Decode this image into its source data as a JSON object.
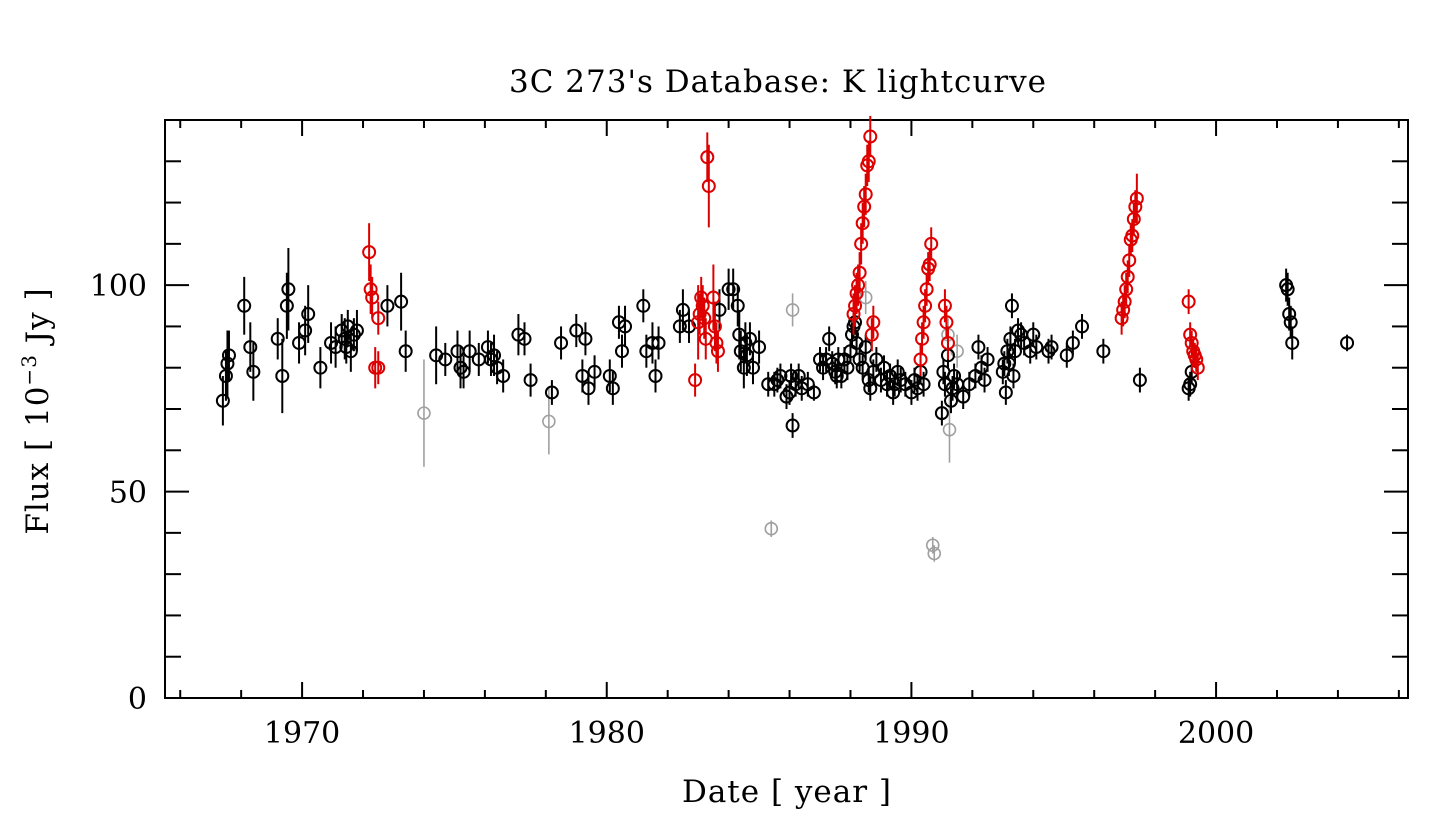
{
  "chart_data": {
    "type": "scatter",
    "title": "3C 273's Database: K lightcurve",
    "xlabel": "Date [ year ]",
    "ylabel_parts": {
      "pre": "Flux [ 10",
      "sup": "−3",
      "post": " Jy ]"
    },
    "xlim": [
      1965.5,
      2006.3
    ],
    "ylim": [
      0,
      140
    ],
    "x_ticks": [
      1970,
      1980,
      1990,
      2000
    ],
    "x_tick_labels": [
      "1970",
      "1980",
      "1990",
      "2000"
    ],
    "y_ticks": [
      0,
      50,
      100
    ],
    "y_tick_labels": [
      "0",
      "50",
      "100"
    ],
    "x_minor_step": 2,
    "y_minor_step": 10,
    "colors": {
      "black": "#000000",
      "red": "#dd0000",
      "gray": "#a0a0a0"
    },
    "series": [
      {
        "name": "black",
        "points": [
          [
            1967.4,
            72,
            6
          ],
          [
            1967.5,
            78,
            6
          ],
          [
            1967.55,
            81,
            8
          ],
          [
            1967.6,
            83,
            6
          ],
          [
            1968.1,
            95,
            7
          ],
          [
            1968.3,
            85,
            6
          ],
          [
            1968.4,
            79,
            7
          ],
          [
            1969.2,
            87,
            5
          ],
          [
            1969.35,
            78,
            9
          ],
          [
            1969.5,
            95,
            8
          ],
          [
            1969.55,
            99,
            10
          ],
          [
            1969.9,
            86,
            5
          ],
          [
            1970.1,
            89,
            6
          ],
          [
            1970.2,
            93,
            7
          ],
          [
            1970.6,
            80,
            5
          ],
          [
            1970.95,
            86,
            5
          ],
          [
            1971.1,
            85,
            5
          ],
          [
            1971.3,
            89,
            4
          ],
          [
            1971.4,
            87,
            5
          ],
          [
            1971.45,
            85,
            4
          ],
          [
            1971.5,
            90,
            4
          ],
          [
            1971.6,
            84,
            5
          ],
          [
            1971.7,
            88,
            4
          ],
          [
            1971.8,
            89,
            5
          ],
          [
            1972.8,
            95,
            5
          ],
          [
            1973.25,
            96,
            7
          ],
          [
            1973.4,
            84,
            5
          ],
          [
            1974.4,
            83,
            7
          ],
          [
            1974.7,
            82,
            4
          ],
          [
            1975.1,
            84,
            5
          ],
          [
            1975.2,
            80,
            5
          ],
          [
            1975.3,
            79,
            4
          ],
          [
            1975.5,
            84,
            5
          ],
          [
            1975.8,
            82,
            4
          ],
          [
            1976.1,
            85,
            4
          ],
          [
            1976.2,
            82,
            4
          ],
          [
            1976.3,
            83,
            5
          ],
          [
            1976.4,
            80,
            4
          ],
          [
            1976.6,
            78,
            4
          ],
          [
            1977.1,
            88,
            5
          ],
          [
            1977.3,
            87,
            4
          ],
          [
            1977.5,
            77,
            4
          ],
          [
            1978.2,
            74,
            3
          ],
          [
            1978.5,
            86,
            4
          ],
          [
            1979.0,
            89,
            4
          ],
          [
            1979.2,
            78,
            4
          ],
          [
            1979.3,
            87,
            4
          ],
          [
            1979.4,
            75,
            4
          ],
          [
            1979.6,
            79,
            4
          ],
          [
            1980.1,
            78,
            4
          ],
          [
            1980.2,
            75,
            4
          ],
          [
            1980.4,
            91,
            4
          ],
          [
            1980.5,
            84,
            4
          ],
          [
            1980.6,
            90,
            5
          ],
          [
            1981.2,
            95,
            4
          ],
          [
            1981.3,
            84,
            4
          ],
          [
            1981.5,
            86,
            5
          ],
          [
            1981.6,
            78,
            4
          ],
          [
            1981.7,
            86,
            4
          ],
          [
            1982.4,
            90,
            4
          ],
          [
            1982.5,
            94,
            5
          ],
          [
            1982.7,
            90,
            4
          ],
          [
            1983.7,
            94,
            5
          ],
          [
            1984.0,
            99,
            5
          ],
          [
            1984.15,
            99,
            5
          ],
          [
            1984.3,
            95,
            5
          ],
          [
            1984.35,
            88,
            6
          ],
          [
            1984.4,
            84,
            5
          ],
          [
            1984.5,
            80,
            5
          ],
          [
            1984.55,
            86,
            5
          ],
          [
            1984.6,
            83,
            5
          ],
          [
            1984.7,
            87,
            4
          ],
          [
            1984.8,
            80,
            4
          ],
          [
            1985.0,
            85,
            4
          ],
          [
            1985.3,
            76,
            3
          ],
          [
            1985.5,
            76,
            3
          ],
          [
            1985.6,
            77,
            3
          ],
          [
            1985.7,
            78,
            3
          ],
          [
            1985.9,
            73,
            3
          ],
          [
            1986.0,
            74,
            3
          ],
          [
            1986.05,
            78,
            3
          ],
          [
            1986.1,
            66,
            3
          ],
          [
            1986.2,
            76,
            3
          ],
          [
            1986.3,
            78,
            3
          ],
          [
            1986.4,
            75,
            3
          ],
          [
            1986.6,
            76,
            3
          ],
          [
            1986.8,
            74,
            2
          ],
          [
            1987.0,
            82,
            3
          ],
          [
            1987.1,
            80,
            3
          ],
          [
            1987.2,
            82,
            3
          ],
          [
            1987.3,
            87,
            3
          ],
          [
            1987.4,
            81,
            3
          ],
          [
            1987.5,
            79,
            3
          ],
          [
            1987.55,
            78,
            3
          ],
          [
            1987.6,
            82,
            3
          ],
          [
            1987.7,
            78,
            3
          ],
          [
            1987.8,
            82,
            3
          ],
          [
            1987.9,
            80,
            3
          ],
          [
            1988.0,
            84,
            3
          ],
          [
            1988.05,
            88,
            3
          ],
          [
            1988.1,
            90,
            3
          ],
          [
            1988.15,
            91,
            3
          ],
          [
            1988.2,
            86,
            3
          ],
          [
            1988.3,
            82,
            3
          ],
          [
            1988.4,
            80,
            3
          ],
          [
            1988.5,
            85,
            3
          ],
          [
            1988.6,
            77,
            3
          ],
          [
            1988.65,
            75,
            3
          ],
          [
            1988.75,
            79,
            3
          ],
          [
            1988.85,
            82,
            3
          ],
          [
            1989.0,
            77,
            3
          ],
          [
            1989.1,
            80,
            3
          ],
          [
            1989.2,
            76,
            3
          ],
          [
            1989.3,
            78,
            3
          ],
          [
            1989.4,
            74,
            3
          ],
          [
            1989.45,
            76,
            3
          ],
          [
            1989.55,
            79,
            3
          ],
          [
            1989.65,
            77,
            3
          ],
          [
            1989.8,
            76,
            3
          ],
          [
            1990.0,
            74,
            3
          ],
          [
            1990.1,
            77,
            3
          ],
          [
            1990.2,
            75,
            3
          ],
          [
            1990.3,
            79,
            3
          ],
          [
            1990.4,
            76,
            3
          ],
          [
            1991.0,
            69,
            3
          ],
          [
            1991.05,
            79,
            3
          ],
          [
            1991.1,
            76,
            3
          ],
          [
            1991.2,
            83,
            3
          ],
          [
            1991.3,
            72,
            3
          ],
          [
            1991.35,
            75,
            3
          ],
          [
            1991.4,
            78,
            3
          ],
          [
            1991.5,
            76,
            3
          ],
          [
            1991.7,
            73,
            3
          ],
          [
            1991.9,
            76,
            3
          ],
          [
            1992.1,
            78,
            3
          ],
          [
            1992.2,
            85,
            3
          ],
          [
            1992.3,
            80,
            3
          ],
          [
            1992.4,
            77,
            3
          ],
          [
            1992.5,
            82,
            3
          ],
          [
            1993.0,
            79,
            3
          ],
          [
            1993.05,
            81,
            3
          ],
          [
            1993.1,
            74,
            3
          ],
          [
            1993.15,
            84,
            3
          ],
          [
            1993.2,
            81,
            3
          ],
          [
            1993.25,
            87,
            3
          ],
          [
            1993.3,
            95,
            3
          ],
          [
            1993.35,
            78,
            3
          ],
          [
            1993.4,
            84,
            3
          ],
          [
            1993.5,
            89,
            3
          ],
          [
            1993.6,
            88,
            3
          ],
          [
            1993.7,
            86,
            3
          ],
          [
            1993.9,
            84,
            3
          ],
          [
            1994.0,
            88,
            3
          ],
          [
            1994.1,
            85,
            3
          ],
          [
            1994.5,
            84,
            3
          ],
          [
            1994.6,
            85,
            3
          ],
          [
            1995.1,
            83,
            3
          ],
          [
            1995.3,
            86,
            3
          ],
          [
            1995.6,
            90,
            3
          ],
          [
            1996.3,
            84,
            3
          ],
          [
            1997.5,
            77,
            3
          ],
          [
            1999.1,
            75,
            3
          ],
          [
            1999.15,
            76,
            3
          ],
          [
            1999.2,
            79,
            3
          ],
          [
            2002.3,
            100,
            4
          ],
          [
            2002.35,
            99,
            4
          ],
          [
            2002.4,
            93,
            4
          ],
          [
            2002.45,
            91,
            4
          ],
          [
            2002.5,
            86,
            4
          ],
          [
            2004.3,
            86,
            2
          ]
        ]
      },
      {
        "name": "red",
        "points": [
          [
            1972.2,
            108,
            7
          ],
          [
            1972.25,
            99,
            6
          ],
          [
            1972.3,
            97,
            5
          ],
          [
            1972.5,
            92,
            4
          ],
          [
            1972.4,
            80,
            5
          ],
          [
            1972.5,
            80,
            4
          ],
          [
            1982.9,
            77,
            4
          ],
          [
            1983.0,
            91,
            9
          ],
          [
            1983.05,
            93,
            5
          ],
          [
            1983.1,
            97,
            5
          ],
          [
            1983.15,
            95,
            5
          ],
          [
            1983.2,
            92,
            5
          ],
          [
            1983.25,
            87,
            5
          ],
          [
            1983.3,
            131,
            6
          ],
          [
            1983.35,
            124,
            10
          ],
          [
            1983.5,
            97,
            8
          ],
          [
            1983.55,
            90,
            6
          ],
          [
            1983.6,
            86,
            5
          ],
          [
            1983.65,
            84,
            5
          ],
          [
            1988.1,
            93,
            5
          ],
          [
            1988.15,
            95,
            5
          ],
          [
            1988.2,
            98,
            5
          ],
          [
            1988.25,
            100,
            5
          ],
          [
            1988.3,
            103,
            5
          ],
          [
            1988.35,
            110,
            5
          ],
          [
            1988.4,
            115,
            5
          ],
          [
            1988.45,
            119,
            5
          ],
          [
            1988.5,
            122,
            5
          ],
          [
            1988.55,
            129,
            5
          ],
          [
            1988.6,
            130,
            5
          ],
          [
            1988.65,
            136,
            5
          ],
          [
            1988.7,
            88,
            4
          ],
          [
            1988.75,
            91,
            4
          ],
          [
            1990.3,
            82,
            4
          ],
          [
            1990.35,
            87,
            4
          ],
          [
            1990.4,
            91,
            4
          ],
          [
            1990.45,
            95,
            4
          ],
          [
            1990.5,
            99,
            4
          ],
          [
            1990.55,
            104,
            4
          ],
          [
            1990.6,
            105,
            4
          ],
          [
            1990.65,
            110,
            4
          ],
          [
            1991.1,
            95,
            4
          ],
          [
            1991.15,
            91,
            4
          ],
          [
            1991.2,
            86,
            4
          ],
          [
            1996.9,
            92,
            4
          ],
          [
            1996.95,
            94,
            4
          ],
          [
            1997.0,
            96,
            4
          ],
          [
            1997.05,
            99,
            4
          ],
          [
            1997.1,
            102,
            4
          ],
          [
            1997.15,
            106,
            4
          ],
          [
            1997.2,
            111,
            4
          ],
          [
            1997.25,
            112,
            4
          ],
          [
            1997.3,
            116,
            4
          ],
          [
            1997.35,
            119,
            4
          ],
          [
            1997.4,
            121,
            6
          ],
          [
            1999.1,
            96,
            3
          ],
          [
            1999.15,
            88,
            3
          ],
          [
            1999.2,
            86,
            3
          ],
          [
            1999.25,
            84,
            3
          ],
          [
            1999.3,
            83,
            3
          ],
          [
            1999.35,
            82,
            3
          ],
          [
            1999.4,
            80,
            3
          ]
        ]
      },
      {
        "name": "gray",
        "points": [
          [
            1974.0,
            69,
            13
          ],
          [
            1978.1,
            67,
            8
          ],
          [
            1985.4,
            41,
            2
          ],
          [
            1986.1,
            94,
            4
          ],
          [
            1988.5,
            97,
            4
          ],
          [
            1990.7,
            37,
            2
          ],
          [
            1990.75,
            35,
            2
          ],
          [
            1991.2,
            88,
            4
          ],
          [
            1991.25,
            65,
            8
          ],
          [
            1991.5,
            84,
            4
          ]
        ]
      }
    ]
  }
}
